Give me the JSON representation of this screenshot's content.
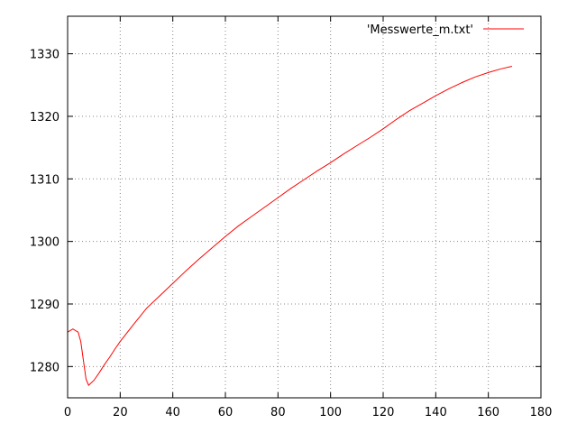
{
  "chart_data": {
    "type": "line",
    "title": "",
    "xlabel": "",
    "ylabel": "",
    "xlim": [
      0,
      180
    ],
    "ylim": [
      1275,
      1336
    ],
    "x_ticks": [
      0,
      20,
      40,
      60,
      80,
      100,
      120,
      140,
      160,
      180
    ],
    "y_ticks": [
      1280,
      1290,
      1300,
      1310,
      1320,
      1330
    ],
    "x_tick_labels": [
      "0",
      "20",
      "40",
      "60",
      "80",
      "100",
      "120",
      "140",
      "160",
      "180"
    ],
    "y_tick_labels": [
      "1280",
      "1290",
      "1300",
      "1310",
      "1320",
      "1330"
    ],
    "grid": true,
    "grid_style": "dotted",
    "legend_position": "top-right",
    "series": [
      {
        "name": "'Messwerte_m.txt'",
        "color": "#ff0000",
        "x": [
          0,
          2,
          4,
          5,
          6,
          7,
          8,
          10,
          12,
          14,
          16,
          18,
          20,
          25,
          30,
          35,
          40,
          45,
          50,
          55,
          60,
          65,
          70,
          75,
          80,
          85,
          90,
          95,
          100,
          105,
          110,
          115,
          120,
          125,
          130,
          135,
          140,
          145,
          150,
          155,
          160,
          165,
          169
        ],
        "y": [
          1285.5,
          1286,
          1285.5,
          1284,
          1281,
          1278,
          1277,
          1277.8,
          1279,
          1280.3,
          1281.5,
          1282.8,
          1284,
          1286.7,
          1289.3,
          1291.3,
          1293.3,
          1295.3,
          1297.2,
          1299,
          1300.8,
          1302.5,
          1304,
          1305.5,
          1307,
          1308.5,
          1309.9,
          1311.3,
          1312.6,
          1314,
          1315.3,
          1316.6,
          1318,
          1319.5,
          1320.9,
          1322.1,
          1323.3,
          1324.4,
          1325.4,
          1326.3,
          1327,
          1327.6,
          1328
        ]
      }
    ]
  }
}
